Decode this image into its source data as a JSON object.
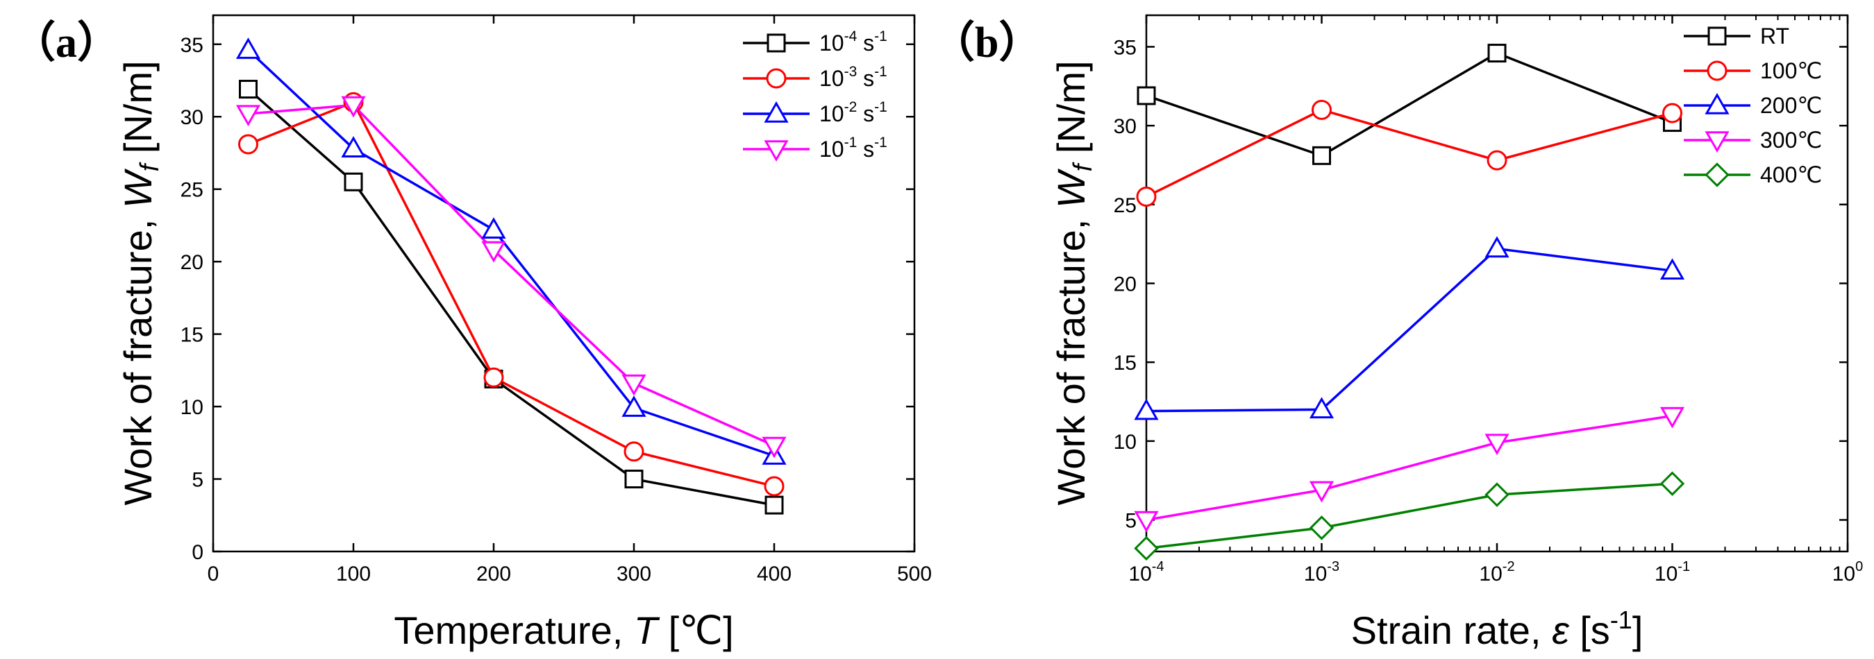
{
  "panels": {
    "a": {
      "label": "（a）",
      "chart_data": {
        "type": "line",
        "title": "",
        "xlabel": "Temperature, T [℃]",
        "ylabel": "Work of fracture, Wf [N/m]",
        "x": [
          25,
          100,
          200,
          300,
          400
        ],
        "xlim": [
          0,
          500
        ],
        "ylim": [
          0,
          37
        ],
        "xticks": [
          0,
          100,
          200,
          300,
          400,
          500
        ],
        "yticks": [
          0,
          5,
          10,
          15,
          20,
          25,
          30,
          35
        ],
        "legend_position": "top-right",
        "series": [
          {
            "name": "10-4 s-1",
            "base": "10",
            "exp": "-4",
            "unit": " s",
            "unit_exp": "-1",
            "color": "#000000",
            "marker": "square",
            "values": [
              31.9,
              25.5,
              11.9,
              5.0,
              3.2
            ]
          },
          {
            "name": "10-3 s-1",
            "base": "10",
            "exp": "-3",
            "unit": " s",
            "unit_exp": "-1",
            "color": "#ff0000",
            "marker": "circle",
            "values": [
              28.1,
              31.0,
              12.0,
              6.9,
              4.5
            ]
          },
          {
            "name": "10-2 s-1",
            "base": "10",
            "exp": "-2",
            "unit": " s",
            "unit_exp": "-1",
            "color": "#0000ff",
            "marker": "triangle-up",
            "values": [
              34.6,
              27.8,
              22.2,
              9.9,
              6.6
            ]
          },
          {
            "name": "10-1 s-1",
            "base": "10",
            "exp": "-1",
            "unit": " s",
            "unit_exp": "-1",
            "color": "#ff00ff",
            "marker": "triangle-down",
            "values": [
              30.2,
              30.8,
              20.8,
              11.6,
              7.3
            ]
          }
        ]
      }
    },
    "b": {
      "label": "（b）",
      "chart_data": {
        "type": "line",
        "title": "",
        "xlabel": "Strain rate, ε [s-1]",
        "ylabel": "Work of fracture, Wf [N/m]",
        "xscale": "log",
        "x": [
          -4,
          -3,
          -2,
          -1
        ],
        "xlim": [
          -4,
          0
        ],
        "ylim": [
          3,
          37
        ],
        "xticks": [
          "10-4",
          "10-3",
          "10-2",
          "10-1",
          "10 0"
        ],
        "xtick_exps": [
          "-4",
          "-3",
          "-2",
          "-1",
          "0"
        ],
        "yticks": [
          5,
          10,
          15,
          20,
          25,
          30,
          35
        ],
        "legend_position": "top-right",
        "series": [
          {
            "name": "RT",
            "color": "#000000",
            "marker": "square",
            "values": [
              31.9,
              28.1,
              34.6,
              30.2
            ]
          },
          {
            "name": "100℃",
            "color": "#ff0000",
            "marker": "circle",
            "values": [
              25.5,
              31.0,
              27.8,
              30.8
            ]
          },
          {
            "name": "200℃",
            "color": "#0000ff",
            "marker": "triangle-up",
            "values": [
              11.9,
              12.0,
              22.2,
              20.8
            ]
          },
          {
            "name": "300℃",
            "color": "#ff00ff",
            "marker": "triangle-down",
            "values": [
              5.0,
              6.9,
              9.9,
              11.6
            ]
          },
          {
            "name": "400℃",
            "color": "#008000",
            "marker": "diamond",
            "values": [
              3.2,
              4.5,
              6.6,
              7.3
            ]
          }
        ]
      }
    }
  },
  "axis_text": {
    "a_xlabel_prefix": "Temperature, ",
    "a_xlabel_var": "T",
    "a_xlabel_suffix": " [℃]",
    "ylabel_prefix": "Work of fracture, ",
    "ylabel_var": "W",
    "ylabel_sub": "f",
    "ylabel_suffix": " [N/m]",
    "b_xlabel_prefix": "Strain rate, ",
    "b_xlabel_var": "ε",
    "b_xlabel_suffix_open": " [s",
    "b_xlabel_sup": "-1",
    "b_xlabel_suffix_close": "]",
    "b_xtick_base": "10"
  }
}
